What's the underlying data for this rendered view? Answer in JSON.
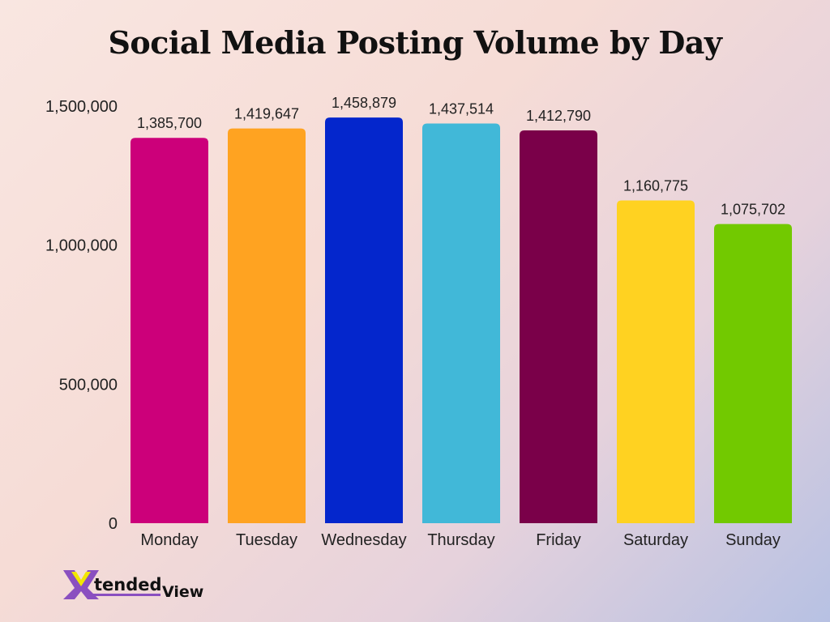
{
  "chart_data": {
    "type": "bar",
    "title": "Social Media Posting Volume by Day",
    "xlabel": "",
    "ylabel": "",
    "ylim": [
      0,
      1500000
    ],
    "yticks": [
      0,
      500000,
      1000000,
      1500000
    ],
    "ytick_labels": [
      "0",
      "500,000",
      "1,000,000",
      "1,500,000"
    ],
    "grid": false,
    "categories": [
      "Monday",
      "Tuesday",
      "Wednesday",
      "Thursday",
      "Friday",
      "Saturday",
      "Sunday"
    ],
    "values": [
      1385700,
      1419647,
      1458879,
      1437514,
      1412790,
      1160775,
      1075702
    ],
    "data_labels": [
      "1,385,700",
      "1,419,647",
      "1,458,879",
      "1,437,514",
      "1,412,790",
      "1,160,775",
      "1,075,702"
    ],
    "colors": [
      "#cc007a",
      "#ffa321",
      "#0426cc",
      "#41b8d8",
      "#7a0049",
      "#ffd221",
      "#72c900"
    ]
  },
  "logo": {
    "text": "XtendedView",
    "colors": {
      "purple": "#8a4fc0",
      "yellow": "#f2e600",
      "text": "#111111"
    }
  }
}
